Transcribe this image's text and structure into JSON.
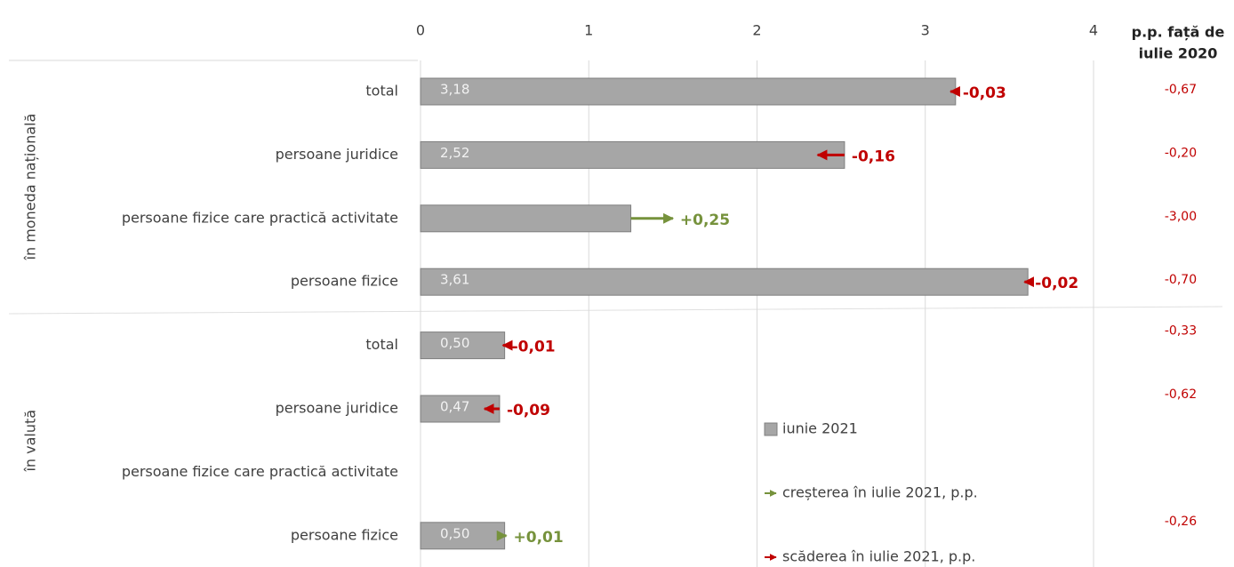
{
  "chart_data": {
    "type": "bar",
    "groups": [
      "în moneda națională",
      "în valută"
    ],
    "categories": [
      "total",
      "persoane juridice",
      "persoane fizice care practică activitate",
      "persoane fizice",
      "total",
      "persoane juridice",
      "persoane fizice care practică activitate",
      "persoane fizice"
    ],
    "series": [
      {
        "name": "iunie 2021",
        "color": "#a6a6a6",
        "values": [
          3.18,
          2.52,
          1.25,
          3.61,
          0.5,
          0.47,
          null,
          0.5
        ],
        "value_labels": [
          "3,18",
          "2,52",
          null,
          "3,61",
          "0,50",
          "0,47",
          null,
          "0,50"
        ]
      },
      {
        "name": "creșterea în iulie 2021, p.p.",
        "color": "#76923c",
        "values": [
          null,
          null,
          0.25,
          null,
          null,
          null,
          null,
          0.01
        ],
        "value_labels": [
          null,
          null,
          "+0,25",
          null,
          null,
          null,
          null,
          "+0,01"
        ]
      },
      {
        "name": "scăderea în iulie 2021, p.p.",
        "color": "#c00000",
        "values": [
          -0.03,
          -0.16,
          null,
          -0.02,
          -0.01,
          -0.09,
          null,
          null
        ],
        "value_labels": [
          "-0,03",
          "-0,16",
          null,
          "-0,02",
          "-0,01",
          "-0,09",
          null,
          null
        ]
      }
    ],
    "right_column": {
      "title_lines": [
        "p.p. față de",
        "iulie 2020"
      ],
      "values": [
        -0.67,
        -0.2,
        -3.0,
        -0.7,
        -0.33,
        -0.62,
        null,
        -0.26
      ],
      "value_labels": [
        "-0,67",
        "-0,20",
        "-3,00",
        "-0,70",
        "-0,33",
        "-0,62",
        null,
        "-0,26"
      ],
      "color": "#c00000"
    },
    "xlim": [
      0,
      4
    ],
    "xticks": [
      0,
      1,
      2,
      3,
      4
    ],
    "grid": true
  }
}
